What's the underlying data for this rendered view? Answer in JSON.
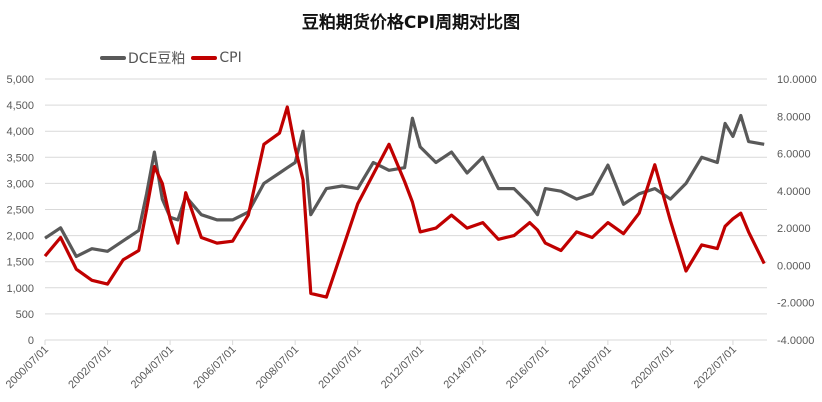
{
  "chart_data": {
    "type": "line",
    "title": "豆粕期货价格CPI周期对比图",
    "legend": [
      "DCE豆粕",
      "CPI"
    ],
    "legend_position": "top-left",
    "colors": {
      "DCE豆粕": "#595959",
      "CPI": "#c00000"
    },
    "x_ticks": [
      "2000/07/01",
      "2002/07/01",
      "2004/07/01",
      "2006/07/01",
      "2008/07/01",
      "2010/07/01",
      "2012/07/01",
      "2014/07/01",
      "2016/07/01",
      "2018/07/01",
      "2020/07/01",
      "2022/07/01"
    ],
    "left_axis": {
      "label": "",
      "ticks": [
        "0",
        "500",
        "1,000",
        "1,500",
        "2,000",
        "2,500",
        "3,000",
        "3,500",
        "4,000",
        "4,500",
        "5,000"
      ],
      "range": [
        0,
        5000
      ]
    },
    "right_axis": {
      "label": "",
      "ticks": [
        "-4.0000",
        "-2.0000",
        "0.0000",
        "2.0000",
        "4.0000",
        "6.0000",
        "8.0000",
        "10.0000"
      ],
      "range": [
        -4,
        10
      ]
    },
    "grid": true,
    "x": [
      "2000-07",
      "2001-01",
      "2001-07",
      "2002-01",
      "2002-07",
      "2003-01",
      "2003-07",
      "2003-10",
      "2004-01",
      "2004-04",
      "2004-07",
      "2004-10",
      "2005-01",
      "2005-07",
      "2006-01",
      "2006-07",
      "2007-01",
      "2007-07",
      "2008-01",
      "2008-04",
      "2008-07",
      "2008-10",
      "2009-01",
      "2009-07",
      "2010-01",
      "2010-07",
      "2011-01",
      "2011-07",
      "2012-01",
      "2012-04",
      "2012-07",
      "2013-01",
      "2013-07",
      "2014-01",
      "2014-07",
      "2015-01",
      "2015-07",
      "2016-01",
      "2016-04",
      "2016-07",
      "2017-01",
      "2017-07",
      "2018-01",
      "2018-07",
      "2019-01",
      "2019-07",
      "2020-01",
      "2020-07",
      "2021-01",
      "2021-07",
      "2022-01",
      "2022-04",
      "2022-07",
      "2022-10",
      "2023-01",
      "2023-07"
    ],
    "series": [
      {
        "name": "DCE豆粕",
        "axis": "left",
        "values": [
          1950,
          2150,
          1600,
          1750,
          1700,
          1900,
          2100,
          2800,
          3600,
          2700,
          2350,
          2300,
          2750,
          2400,
          2300,
          2300,
          2450,
          3000,
          3200,
          3300,
          3400,
          4000,
          2400,
          2900,
          2950,
          2900,
          3400,
          3250,
          3300,
          4250,
          3700,
          3400,
          3600,
          3200,
          3500,
          2900,
          2900,
          2600,
          2400,
          2900,
          2850,
          2700,
          2800,
          3350,
          2600,
          2800,
          2900,
          2700,
          3000,
          3500,
          3400,
          4150,
          3900,
          4300,
          3800,
          3750
        ]
      },
      {
        "name": "CPI",
        "axis": "right",
        "values": [
          0.5,
          1.5,
          -0.2,
          -0.8,
          -1.0,
          0.3,
          0.8,
          3.0,
          5.3,
          4.4,
          2.5,
          1.2,
          3.9,
          1.5,
          1.2,
          1.3,
          2.7,
          6.5,
          7.1,
          8.5,
          6.3,
          4.6,
          -1.5,
          -1.7,
          0.8,
          3.3,
          4.9,
          6.5,
          4.5,
          3.4,
          1.8,
          2.0,
          2.7,
          2.0,
          2.3,
          1.4,
          1.6,
          2.3,
          1.9,
          1.2,
          0.8,
          1.8,
          1.5,
          2.3,
          1.7,
          2.8,
          5.4,
          2.4,
          -0.3,
          1.1,
          0.9,
          2.1,
          2.5,
          2.8,
          1.8,
          0.1
        ]
      }
    ]
  }
}
